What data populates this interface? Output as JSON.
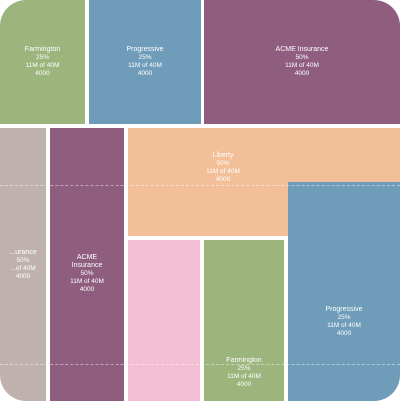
{
  "colors": {
    "green": "#9cb57d",
    "blue": "#6f9cb9",
    "purple": "#8f5e7e",
    "peach": "#f2bf98",
    "taupe": "#bfb2ae",
    "pink": "#f4bed4",
    "divider": "#ffffff"
  },
  "tiles": {
    "farmington_top": {
      "name": "Farmington",
      "pct": "25%",
      "amount": "11M of 40M",
      "count": "4000"
    },
    "progressive_top": {
      "name": "Progressive",
      "pct": "25%",
      "amount": "11M of 40M",
      "count": "4000"
    },
    "acme_insurance": {
      "name": "ACME Insurance",
      "pct": "50%",
      "amount": "11M of 40M",
      "count": "4000"
    },
    "taupe_left": {
      "name": "...urance",
      "pct": "50%",
      "amount": "...of 40M",
      "count": "4000"
    },
    "acme_insurance_mid": {
      "name": "ACME",
      "name2": "Insurance",
      "pct": "50%",
      "amount": "11M of 40M",
      "count": "4000"
    },
    "liberty": {
      "name": "Liberty",
      "pct": "50%",
      "amount": "11M of 40M",
      "count": "4000"
    },
    "farmington_bottom": {
      "name": "Farmington",
      "pct": "25%",
      "amount": "11M of 40M",
      "count": "4000"
    },
    "progressive_bottom": {
      "name": "Progressive",
      "pct": "25%",
      "amount": "11M of 40M",
      "count": "4000"
    }
  }
}
